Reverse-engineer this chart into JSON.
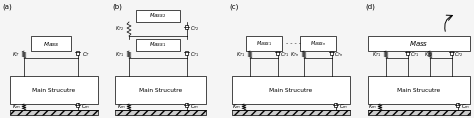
{
  "fig_width": 4.74,
  "fig_height": 1.18,
  "bg_color": "#f5f5f5",
  "text_color": "#000000",
  "box_color": "#ffffff",
  "box_edge": "#000000",
  "line_color": "#000000",
  "panel_labels": [
    "(a)",
    "(b)",
    "(c)",
    "(d)"
  ],
  "main_box_text": "Main Strucutre",
  "ground_color": "#aaaaaa"
}
